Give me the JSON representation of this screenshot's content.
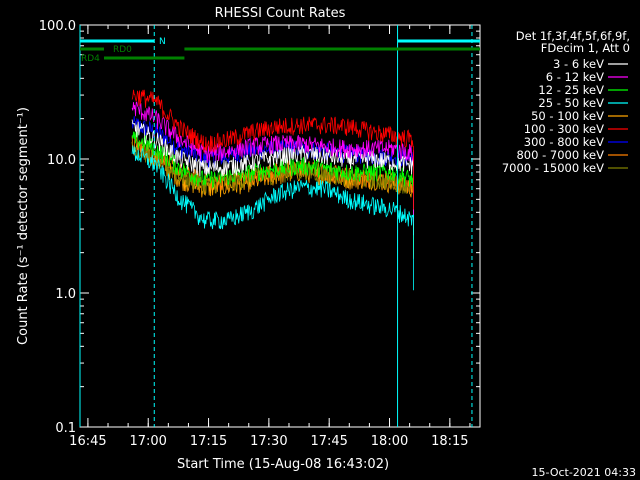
{
  "chart_data": {
    "type": "line",
    "title": "RHESSI Count Rates",
    "xlabel": "Start Time (15-Aug-08 16:43:02)",
    "ylabel": "Count Rate (s⁻¹ detector segment⁻¹)",
    "y_scale": "log",
    "ylim": [
      0.1,
      100
    ],
    "y_ticks": [
      "0.1",
      "1.0",
      "10.0",
      "100.0"
    ],
    "x_ticks": [
      "16:45",
      "17:00",
      "17:15",
      "17:30",
      "17:45",
      "18:00",
      "18:15"
    ],
    "x_range": [
      "16:43:02",
      "18:22:30"
    ],
    "data_start": "16:56:00",
    "data_end": "18:06:00",
    "legend_header": [
      "Det 1f,3f,4f,5f,6f,9f,",
      "FDecim 1, Att 0"
    ],
    "series": [
      {
        "name": "3 - 6 keV",
        "color": "#ffffff",
        "values": [
          17,
          14,
          10,
          8.5,
          8.8,
          9.5,
          10.5,
          11,
          10.5,
          10,
          10,
          9.5,
          9
        ]
      },
      {
        "name": "6 - 12 keV",
        "color": "#ff00ff",
        "values": [
          24,
          20,
          14,
          11,
          11.5,
          12.5,
          13,
          13,
          12.5,
          12,
          12,
          12,
          11
        ]
      },
      {
        "name": "12 - 25 keV",
        "color": "#00ff00",
        "values": [
          14,
          12,
          8.5,
          7,
          7.5,
          8,
          8.5,
          9,
          8.5,
          8,
          8,
          8,
          7
        ]
      },
      {
        "name": "25 - 50 keV",
        "color": "#00ffff",
        "values": [
          11,
          9,
          5,
          3.5,
          3.5,
          4.2,
          5.5,
          6.2,
          6,
          5,
          4.5,
          4.2,
          3.5
        ]
      },
      {
        "name": "50 - 100 keV",
        "color": "#ffa500",
        "values": [
          12,
          10,
          7,
          6,
          6.2,
          6.8,
          7.5,
          8,
          7.5,
          7,
          7,
          6.5,
          6
        ]
      },
      {
        "name": "100 - 300 keV",
        "color": "#ff0000",
        "values": [
          30,
          27,
          17,
          13,
          14,
          16,
          17.5,
          18,
          18,
          17.5,
          16,
          15,
          14
        ]
      },
      {
        "name": "300 - 800 keV",
        "color": "#0000ff",
        "values": [
          18,
          16,
          12,
          10,
          10.5,
          11.5,
          12,
          12,
          11.5,
          11,
          10.5,
          10.5,
          10
        ]
      },
      {
        "name": "800 - 7000 keV",
        "color": "#ff7f00",
        "values": [
          13,
          11,
          8,
          6.8,
          7,
          7.5,
          8.2,
          8.6,
          8,
          7.5,
          7.2,
          7,
          6.5
        ]
      },
      {
        "name": "7000 - 15000 keV",
        "color": "#808000",
        "values": [
          12,
          10,
          7.5,
          6.5,
          6.7,
          7.2,
          7.8,
          8.2,
          7.8,
          7.3,
          7,
          6.8,
          6.3
        ]
      }
    ],
    "series_times": [
      "16:57",
      "17:02",
      "17:08",
      "17:14",
      "17:20",
      "17:26",
      "17:32",
      "17:38",
      "17:44",
      "17:50",
      "17:56",
      "18:01",
      "18:06"
    ],
    "markers": [
      {
        "label": "N",
        "color": "#00ffff",
        "start": "16:43:02",
        "end": "17:01:30"
      },
      {
        "label": "N",
        "color": "#00ffff",
        "start": "18:02:00",
        "end": "18:22:30"
      },
      {
        "label": "RD0",
        "color": "#008000",
        "start": "16:43:02",
        "end": "16:49:00"
      },
      {
        "label": "RD0",
        "color": "#008000",
        "start": "17:09:00",
        "end": "18:22:30"
      },
      {
        "label": "RD4",
        "color": "#008000",
        "start": "16:49:00",
        "end": "17:09:00"
      }
    ],
    "vlines": [
      {
        "time": "16:43:02",
        "style": "solid",
        "color": "#00ffff"
      },
      {
        "time": "17:01:30",
        "style": "dashed",
        "color": "#00ffff"
      },
      {
        "time": "18:02:00",
        "style": "solid",
        "color": "#00ffff"
      },
      {
        "time": "18:20:30",
        "style": "dashed",
        "color": "#00ffff"
      }
    ],
    "timestamp": "15-Oct-2021 04:33"
  }
}
